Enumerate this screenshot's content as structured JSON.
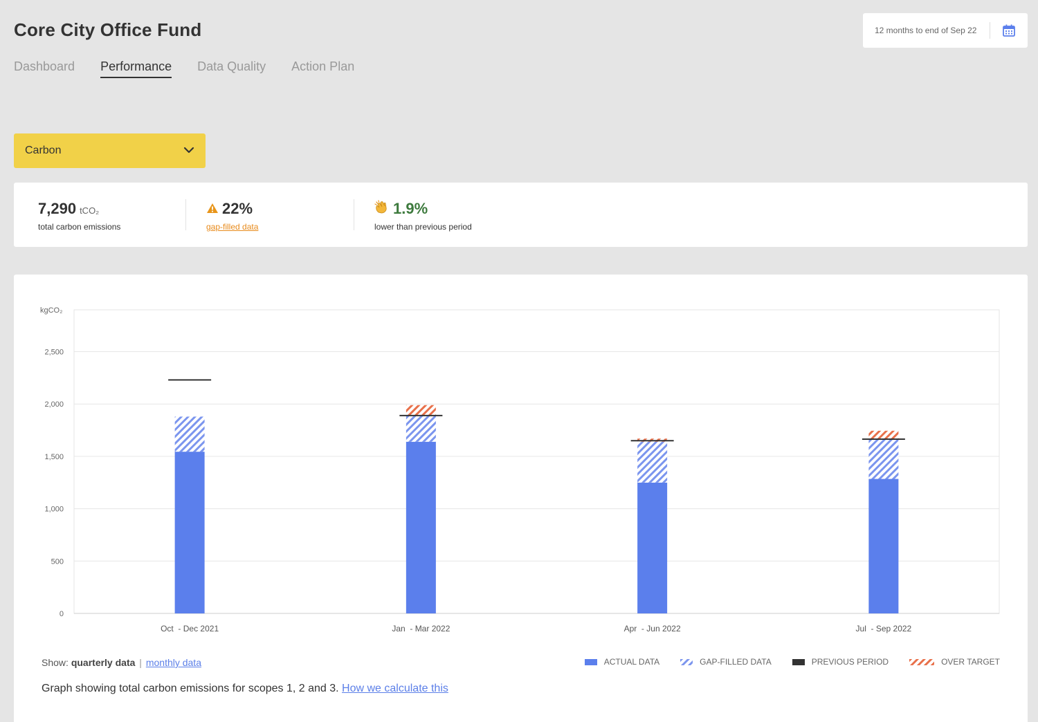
{
  "header": {
    "title": "Core City Office Fund",
    "date_range": "12 months to end of Sep 22"
  },
  "tabs": [
    {
      "label": "Dashboard",
      "active": false
    },
    {
      "label": "Performance",
      "active": true
    },
    {
      "label": "Data Quality",
      "active": false
    },
    {
      "label": "Action Plan",
      "active": false
    }
  ],
  "metric_select": {
    "selected": "Carbon"
  },
  "summary": {
    "total": {
      "value": "7,290",
      "unit": "tCO₂",
      "label": "total carbon emissions"
    },
    "gap": {
      "value": "22%",
      "label": "gap-filled data"
    },
    "change": {
      "value": "1.9%",
      "label": "lower than previous period"
    }
  },
  "chart_data": {
    "type": "bar",
    "ylabel": "kgCO₂",
    "ylim": [
      0,
      2900
    ],
    "yticks": [
      0,
      500,
      1000,
      1500,
      2000,
      2500
    ],
    "ytick_labels": [
      "0",
      "500",
      "1,000",
      "1,500",
      "2,000",
      "2,500"
    ],
    "grid": true,
    "categories": [
      "Oct  - Dec 2021",
      "Jan  - Mar 2022",
      "Apr  - Jun 2022",
      "Jul  - Sep 2022"
    ],
    "series": [
      {
        "name": "ACTUAL DATA",
        "values": [
          1545,
          1640,
          1250,
          1285
        ]
      },
      {
        "name": "GAP-FILLED DATA",
        "values": [
          335,
          250,
          390,
          385
        ]
      },
      {
        "name": "OVER TARGET",
        "values": [
          0,
          100,
          30,
          75
        ]
      },
      {
        "name": "PREVIOUS PERIOD",
        "values": [
          2230,
          1890,
          1650,
          1665
        ]
      }
    ],
    "colors": {
      "actual": "#5b7fec",
      "gap": "#7b95ee",
      "over": "#e8704a",
      "previous": "#333333"
    },
    "legend": [
      "ACTUAL DATA",
      "GAP-FILLED DATA",
      "PREVIOUS PERIOD",
      "OVER TARGET"
    ],
    "legend_position": "bottom-right"
  },
  "controls": {
    "show_label": "Show:",
    "quarterly": "quarterly data",
    "separator": "|",
    "monthly": "monthly data"
  },
  "caption": {
    "text": "Graph showing total carbon emissions for scopes 1, 2 and 3.",
    "link": "How we calculate this"
  },
  "icons": [
    "calendar-icon",
    "chevron-down-icon",
    "warning-icon",
    "clapping-hands-icon"
  ]
}
